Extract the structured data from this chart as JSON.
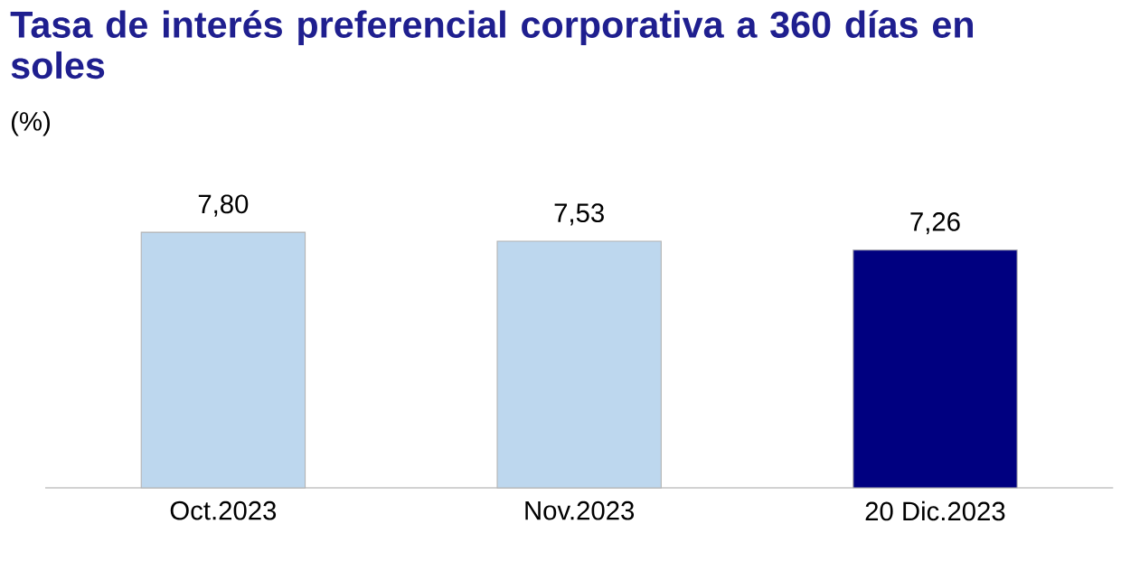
{
  "chart_data": {
    "type": "bar",
    "title": "Tasa de interés preferencial corporativa a 360 días en soles",
    "subtitle": "(%)",
    "categories": [
      "Oct.2023",
      "Nov.2023",
      "20 Dic.2023"
    ],
    "values": [
      7.8,
      7.53,
      7.26
    ],
    "value_labels": [
      "7,80",
      "7,53",
      "7,26"
    ],
    "colors": [
      "#bdd7ee",
      "#bdd7ee",
      "#000080"
    ]
  }
}
